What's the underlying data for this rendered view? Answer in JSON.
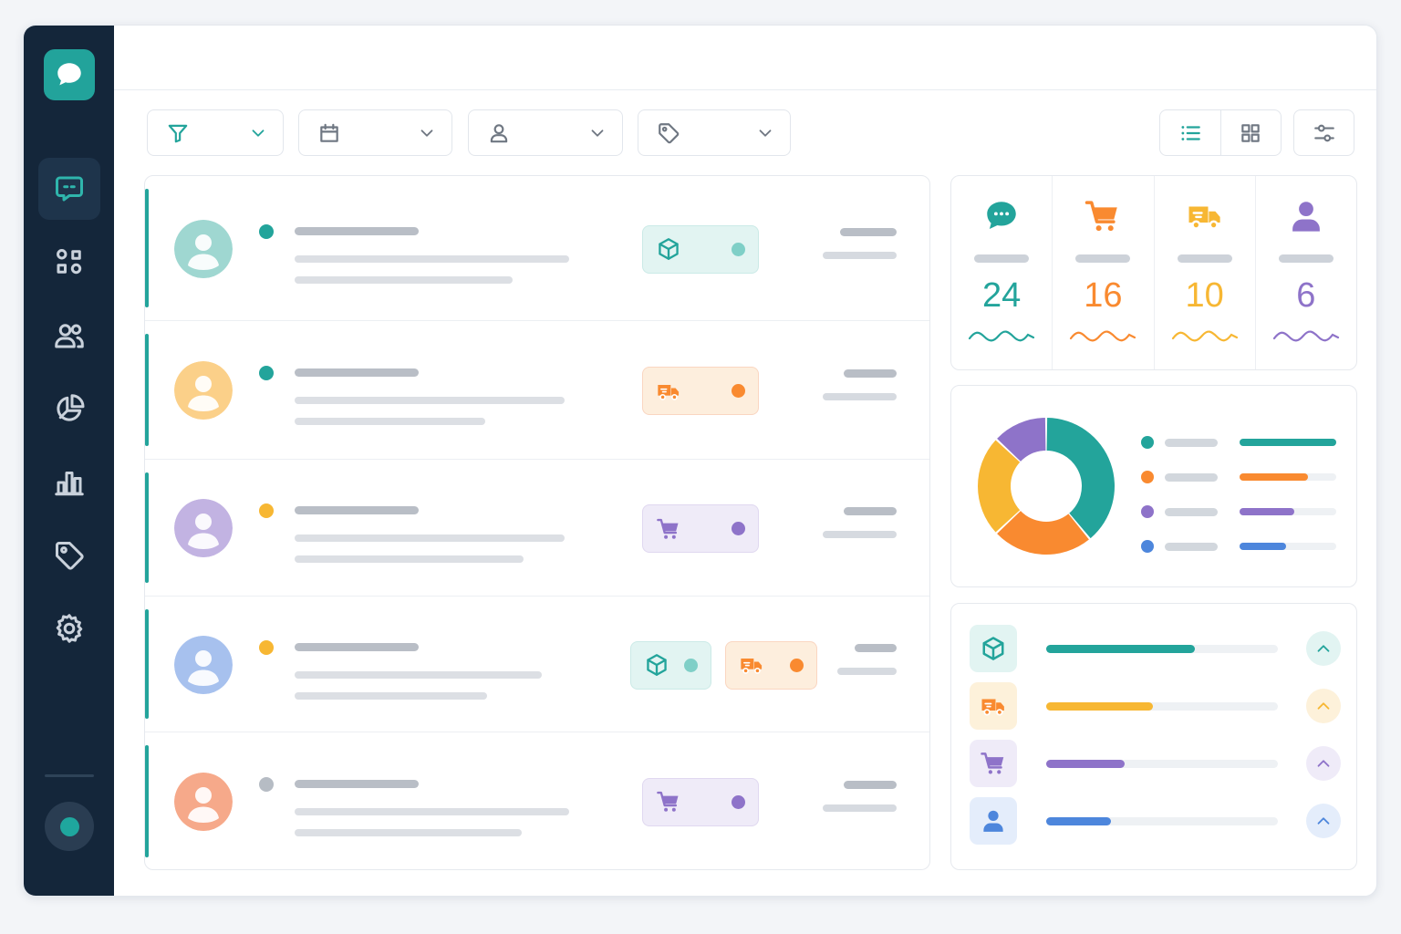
{
  "colors": {
    "teal": "#23a49b",
    "orange": "#f98a30",
    "yellow": "#f7b733",
    "purple": "#8e73c9",
    "blue": "#4d86dc",
    "gray": "#b6bcc4",
    "sidebar": "#14263a"
  },
  "sidebar": {
    "logo_icon": "chat-bubble-icon",
    "items": [
      {
        "icon": "chat-icon",
        "active": true
      },
      {
        "icon": "apps-icon",
        "active": false
      },
      {
        "icon": "users-icon",
        "active": false
      },
      {
        "icon": "pie-chart-icon",
        "active": false
      },
      {
        "icon": "bar-chart-icon",
        "active": false
      },
      {
        "icon": "tag-icon",
        "active": false
      },
      {
        "icon": "gear-icon",
        "active": false
      }
    ],
    "status": "online"
  },
  "toolbar": {
    "filters": [
      {
        "icon": "funnel-icon",
        "label": ""
      },
      {
        "icon": "calendar-icon",
        "label": ""
      },
      {
        "icon": "user-icon",
        "label": ""
      },
      {
        "icon": "tag-icon",
        "label": ""
      }
    ],
    "views": [
      {
        "icon": "list-view-icon",
        "active": true
      },
      {
        "icon": "grid-view-icon",
        "active": false
      }
    ],
    "settings_icon": "sliders-icon"
  },
  "conversations": [
    {
      "avatar_color": "teal",
      "status": "teal",
      "tags": [
        {
          "icon": "box-icon",
          "color": "teal"
        }
      ]
    },
    {
      "avatar_color": "yellow",
      "status": "teal",
      "tags": [
        {
          "icon": "truck-icon",
          "color": "orange"
        }
      ]
    },
    {
      "avatar_color": "purple",
      "status": "yellow",
      "tags": [
        {
          "icon": "cart-icon",
          "color": "purple"
        }
      ]
    },
    {
      "avatar_color": "blue",
      "status": "yellow",
      "tags": [
        {
          "icon": "box-icon",
          "color": "teal"
        },
        {
          "icon": "truck-icon",
          "color": "orange"
        }
      ]
    },
    {
      "avatar_color": "orange",
      "status": "gray",
      "tags": [
        {
          "icon": "cart-icon",
          "color": "purple"
        }
      ]
    }
  ],
  "stats": [
    {
      "icon": "chat-icon",
      "value": "24",
      "color": "teal"
    },
    {
      "icon": "cart-icon",
      "value": "16",
      "color": "orange"
    },
    {
      "icon": "truck-icon",
      "value": "10",
      "color": "yellow"
    },
    {
      "icon": "user-icon",
      "value": "6",
      "color": "purple"
    }
  ],
  "breakdown": {
    "donut": [
      {
        "color": "teal",
        "share": 0.39
      },
      {
        "color": "orange",
        "share": 0.24
      },
      {
        "color": "yellow",
        "share": 0.24
      },
      {
        "color": "purple",
        "share": 0.13
      }
    ],
    "legend": [
      {
        "color": "teal",
        "level": 1.0
      },
      {
        "color": "orange",
        "level": 0.71
      },
      {
        "color": "purple",
        "level": 0.57
      },
      {
        "color": "blue",
        "level": 0.48
      }
    ]
  },
  "progress": [
    {
      "icon": "box-icon",
      "color": "teal",
      "level": 0.64
    },
    {
      "icon": "truck-icon",
      "color": "yellow",
      "level": 0.46
    },
    {
      "icon": "cart-icon",
      "color": "purple",
      "level": 0.34
    },
    {
      "icon": "user-icon",
      "color": "blue",
      "level": 0.28
    }
  ]
}
